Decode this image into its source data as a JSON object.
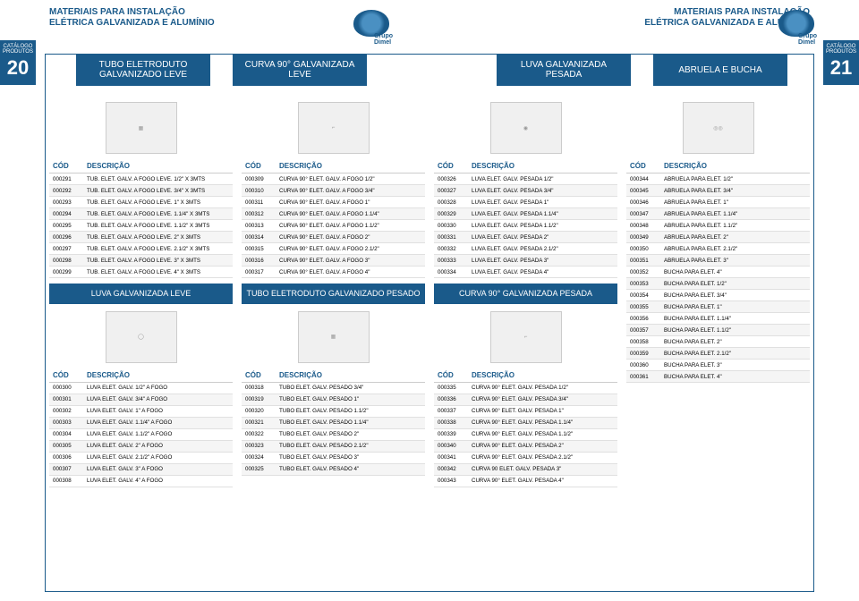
{
  "header": {
    "title1": "MATERIAIS PARA INSTALAÇÃO",
    "title2": "ELÉTRICA GALVANIZADA E ALUMÍNIO",
    "catalog": "CATÁLOGO",
    "products": "PRODUTOS",
    "page_left": "20",
    "page_right": "21",
    "brand": "Grupo Dimel"
  },
  "sections": {
    "s1": "TUBO ELETRODUTO GALVANIZADO LEVE",
    "s2": "CURVA 90° GALVANIZADA LEVE",
    "s3": "LUVA GALVANIZADA PESADA",
    "s4": "ABRUELA E BUCHA",
    "s5": "LUVA GALVANIZADA LEVE",
    "s6": "TUBO ELETRODUTO GALVANIZADO PESADO",
    "s7": "CURVA 90° GALVANIZADA PESADA"
  },
  "th": {
    "cod": "CÓD",
    "desc": "DESCRIÇÃO"
  },
  "t1": [
    {
      "c": "000291",
      "d": "TUB. ELET. GALV. A FOGO LEVE. 1/2\" X 3MTS"
    },
    {
      "c": "000292",
      "d": "TUB. ELET. GALV. A FOGO LEVE. 3/4\" X 3MTS"
    },
    {
      "c": "000293",
      "d": "TUB. ELET. GALV. A FOGO LEVE. 1\" X 3MTS"
    },
    {
      "c": "000294",
      "d": "TUB. ELET. GALV. A FOGO LEVE. 1.1/4\" X 3MTS"
    },
    {
      "c": "000295",
      "d": "TUB. ELET. GALV. A FOGO LEVE. 1.1/2\" X 3MTS"
    },
    {
      "c": "000296",
      "d": "TUB. ELET. GALV. A FOGO LEVE. 2\" X 3MTS"
    },
    {
      "c": "000297",
      "d": "TUB. ELET. GALV. A FOGO LEVE. 2.1/2\" X 3MTS"
    },
    {
      "c": "000298",
      "d": "TUB. ELET. GALV. A FOGO LEVE. 3\" X 3MTS"
    },
    {
      "c": "000299",
      "d": "TUB. ELET. GALV. A FOGO LEVE. 4\" X 3MTS"
    }
  ],
  "t2": [
    {
      "c": "000309",
      "d": "CURVA 90° ELET. GALV. A FOGO 1/2\""
    },
    {
      "c": "000310",
      "d": "CURVA 90° ELET. GALV. A FOGO 3/4\""
    },
    {
      "c": "000311",
      "d": "CURVA 90° ELET. GALV. A FOGO 1\""
    },
    {
      "c": "000312",
      "d": "CURVA 90° ELET. GALV. A FOGO 1.1/4\""
    },
    {
      "c": "000313",
      "d": "CURVA 90° ELET. GALV. A FOGO 1.1/2\""
    },
    {
      "c": "000314",
      "d": "CURVA 90° ELET. GALV. A FOGO 2\""
    },
    {
      "c": "000315",
      "d": "CURVA 90° ELET. GALV. A FOGO 2.1/2\""
    },
    {
      "c": "000316",
      "d": "CURVA 90° ELET. GALV. A FOGO 3\""
    },
    {
      "c": "000317",
      "d": "CURVA 90° ELET. GALV. A FOGO 4\""
    }
  ],
  "t3": [
    {
      "c": "000326",
      "d": "LUVA ELET. GALV. PESADA 1/2\""
    },
    {
      "c": "000327",
      "d": "LUVA ELET. GALV. PESADA 3/4\""
    },
    {
      "c": "000328",
      "d": "LUVA ELET. GALV. PESADA 1\""
    },
    {
      "c": "000329",
      "d": "LUVA ELET. GALV. PESADA 1.1/4\""
    },
    {
      "c": "000330",
      "d": "LUVA ELET. GALV. PESADA 1.1/2\""
    },
    {
      "c": "000331",
      "d": "LUVA ELET. GALV. PESADA 2\""
    },
    {
      "c": "000332",
      "d": "LUVA ELET. GALV. PESADA 2.1/2\""
    },
    {
      "c": "000333",
      "d": "LUVA ELET. GALV. PESADA 3\""
    },
    {
      "c": "000334",
      "d": "LUVA ELET. GALV. PESADA 4\""
    }
  ],
  "t4": [
    {
      "c": "000344",
      "d": "ABRUELA PARA ELET. 1/2\""
    },
    {
      "c": "000345",
      "d": "ABRUELA PARA ELET. 3/4\""
    },
    {
      "c": "000346",
      "d": "ABRUELA PARA ELET. 1\""
    },
    {
      "c": "000347",
      "d": "ABRUELA PARA ELET. 1.1/4\""
    },
    {
      "c": "000348",
      "d": "ABRUELA PARA ELET. 1.1/2\""
    },
    {
      "c": "000349",
      "d": "ABRUELA PARA ELET. 2\""
    },
    {
      "c": "000350",
      "d": "ABRUELA PARA ELET. 2.1/2\""
    },
    {
      "c": "000351",
      "d": "ABRUELA PARA ELET. 3\""
    },
    {
      "c": "000352",
      "d": "BUCHA PARA ELET. 4\""
    },
    {
      "c": "000353",
      "d": "BUCHA PARA ELET. 1/2\""
    },
    {
      "c": "000354",
      "d": "BUCHA PARA ELET. 3/4\""
    },
    {
      "c": "000355",
      "d": "BUCHA PARA ELET. 1\""
    },
    {
      "c": "000356",
      "d": "BUCHA PARA ELET. 1.1/4\""
    },
    {
      "c": "000357",
      "d": "BUCHA PARA ELET. 1.1/2\""
    },
    {
      "c": "000358",
      "d": "BUCHA PARA ELET. 2\""
    },
    {
      "c": "000359",
      "d": "BUCHA PARA ELET. 2.1/2\""
    },
    {
      "c": "000360",
      "d": "BUCHA PARA ELET. 3\""
    },
    {
      "c": "000361",
      "d": "BUCHA PARA ELET. 4\""
    }
  ],
  "t5": [
    {
      "c": "000300",
      "d": "LUVA ELET. GALV. 1/2\" A FOGO"
    },
    {
      "c": "000301",
      "d": "LUVA ELET. GALV. 3/4\" A FOGO"
    },
    {
      "c": "000302",
      "d": "LUVA ELET. GALV. 1\" A FOGO"
    },
    {
      "c": "000303",
      "d": "LUVA ELET. GALV. 1.1/4\" A FOGO"
    },
    {
      "c": "000304",
      "d": "LUVA ELET. GALV. 1.1/2\" A FOGO"
    },
    {
      "c": "000305",
      "d": "LUVA ELET. GALV. 2\" A FOGO"
    },
    {
      "c": "000306",
      "d": "LUVA ELET. GALV. 2.1/2\" A FOGO"
    },
    {
      "c": "000307",
      "d": "LUVA ELET. GALV. 3\" A FOGO"
    },
    {
      "c": "000308",
      "d": "LUVA ELET. GALV. 4\" A FOGO"
    }
  ],
  "t6": [
    {
      "c": "000318",
      "d": "TUBO ELET. GALV. PESADO 3/4\""
    },
    {
      "c": "000319",
      "d": "TUBO ELET. GALV. PESADO 1\""
    },
    {
      "c": "000320",
      "d": "TUBO ELET. GALV. PESADO 1.1/2\""
    },
    {
      "c": "000321",
      "d": "TUBO ELET. GALV. PESADO 1.1/4\""
    },
    {
      "c": "000322",
      "d": "TUBO ELET. GALV. PESADO 2\""
    },
    {
      "c": "000323",
      "d": "TUBO ELET. GALV. PESADO 2.1/2\""
    },
    {
      "c": "000324",
      "d": "TUBO ELET. GALV. PESADO 3\""
    },
    {
      "c": "000325",
      "d": "TUBO ELET. GALV. PESADO 4\""
    }
  ],
  "t7": [
    {
      "c": "000335",
      "d": "CURVA 90° ELET. GALV. PESADA 1/2\""
    },
    {
      "c": "000336",
      "d": "CURVA 90° ELET. GALV. PESADA 3/4\""
    },
    {
      "c": "000337",
      "d": "CURVA 90° ELET. GALV. PESADA 1\""
    },
    {
      "c": "000338",
      "d": "CURVA 90° ELET. GALV. PESADA 1.1/4\""
    },
    {
      "c": "000339",
      "d": "CURVA 90° ELET. GALV. PESADA 1.1/2\""
    },
    {
      "c": "000340",
      "d": "CURVA 90° ELET. GALV. PESADA 2\""
    },
    {
      "c": "000341",
      "d": "CURVA 90° ELET. GALV. PESADA 2.1/2\""
    },
    {
      "c": "000342",
      "d": "CURVA 90  ELET. GALV. PESADA 3\""
    },
    {
      "c": "000343",
      "d": "CURVA 90° ELET. GALV. PESADA 4\""
    }
  ]
}
